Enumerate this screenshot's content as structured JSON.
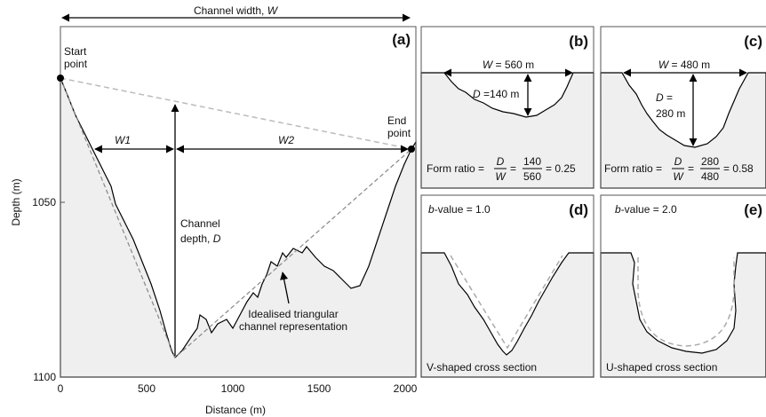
{
  "panel_a": {
    "label": "(a)",
    "width_label": [
      "Channel width, ",
      "W"
    ],
    "start_point": [
      "Start",
      "point"
    ],
    "end_point": [
      "End",
      "point"
    ],
    "w1": "W1",
    "w2": "W2",
    "depth_label": [
      "Channel",
      "depth, ",
      "D"
    ],
    "idealised": [
      "Idealised triangular",
      "channel representation"
    ],
    "y_axis_title": "Depth (m)",
    "x_axis_title": "Distance (m)",
    "y_ticks": [
      "1050",
      "1100"
    ],
    "x_ticks": [
      "0",
      "500",
      "1000",
      "1500",
      "2000"
    ]
  },
  "panel_b": {
    "label": "(b)",
    "width": [
      "W",
      " = 560 m"
    ],
    "depth": [
      "D",
      " =140 m"
    ],
    "form_ratio": {
      "prefix": "Form ratio =",
      "num": "D",
      "den": "W",
      "eq": "=",
      "num2": "140",
      "den2": "560",
      "result": "= 0.25"
    }
  },
  "panel_c": {
    "label": "(c)",
    "width": [
      "W",
      " = 480 m"
    ],
    "depth": [
      "D",
      " =",
      "280 m"
    ],
    "form_ratio": {
      "prefix": "Form ratio =",
      "num": "D",
      "den": "W",
      "eq": "=",
      "num2": "280",
      "den2": "480",
      "result": "= 0.58"
    }
  },
  "panel_d": {
    "label": "(d)",
    "b_value": [
      "b",
      "-value = 1.0"
    ],
    "caption": "V-shaped cross section"
  },
  "panel_e": {
    "label": "(e)",
    "b_value": [
      "b",
      "-value = 2.0"
    ],
    "caption": "U-shaped cross section"
  }
}
